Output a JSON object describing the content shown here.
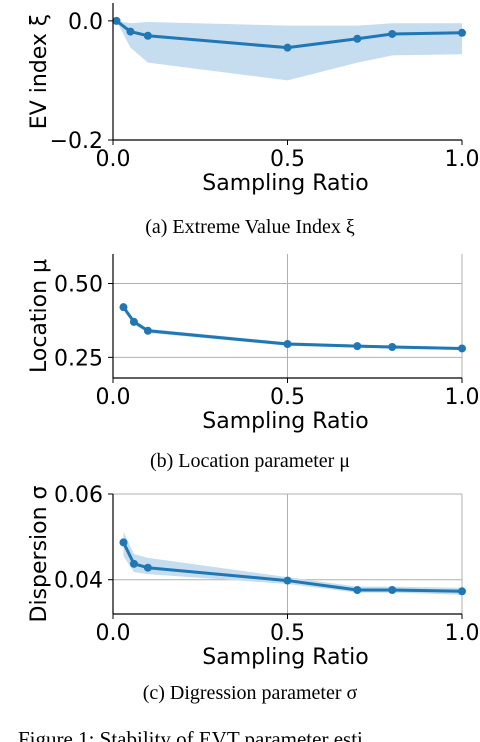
{
  "figure_caption": "Figure 1: Stability of EVT parameter esti",
  "chart_data": [
    {
      "type": "line",
      "caption": "(a) Extreme Value Index ξ",
      "xlabel": "Sampling Ratio",
      "ylabel": "EV index ξ",
      "xlim": [
        0.0,
        1.0
      ],
      "ylim": [
        -0.2,
        0.03
      ],
      "xticks": [
        "0.0",
        "0.5",
        "1.0"
      ],
      "yticks": [
        "−0.2",
        "0.0"
      ],
      "ytick_values": [
        -0.2,
        0.0
      ],
      "grid": false,
      "color": "#1f77b4",
      "band_color": "#c6dcef",
      "series": [
        {
          "x": [
            0.01,
            0.05,
            0.1,
            0.5,
            0.7,
            0.8,
            1.0
          ],
          "y": [
            0.0,
            -0.018,
            -0.025,
            -0.045,
            -0.03,
            -0.022,
            -0.02
          ],
          "lower": [
            0.0,
            -0.045,
            -0.07,
            -0.1,
            -0.07,
            -0.058,
            -0.056
          ],
          "upper": [
            0.0,
            -0.004,
            -0.002,
            -0.008,
            -0.008,
            -0.004,
            -0.004
          ]
        }
      ]
    },
    {
      "type": "line",
      "caption": "(b) Location parameter μ",
      "xlabel": "Sampling Ratio",
      "ylabel": "Location μ",
      "xlim": [
        0.0,
        1.0
      ],
      "ylim": [
        0.18,
        0.6
      ],
      "xticks": [
        "0.0",
        "0.5",
        "1.0"
      ],
      "yticks": [
        "0.25",
        "0.50"
      ],
      "ytick_values": [
        0.25,
        0.5
      ],
      "grid": true,
      "color": "#1f77b4",
      "band_color": "#c6dcef",
      "series": [
        {
          "x": [
            0.03,
            0.06,
            0.1,
            0.5,
            0.7,
            0.8,
            1.0
          ],
          "y": [
            0.42,
            0.37,
            0.34,
            0.295,
            0.288,
            0.285,
            0.28
          ],
          "lower": [
            0.412,
            0.362,
            0.333,
            0.289,
            0.283,
            0.28,
            0.275
          ],
          "upper": [
            0.428,
            0.378,
            0.347,
            0.301,
            0.293,
            0.29,
            0.285
          ]
        }
      ]
    },
    {
      "type": "line",
      "caption": "(c) Digression parameter σ",
      "xlabel": "Sampling Ratio",
      "ylabel": "Dispersion σ",
      "xlim": [
        0.0,
        1.0
      ],
      "ylim": [
        0.032,
        0.06
      ],
      "xticks": [
        "0.0",
        "0.5",
        "1.0"
      ],
      "yticks": [
        "0.04",
        "0.06"
      ],
      "ytick_values": [
        0.04,
        0.06
      ],
      "grid": true,
      "color": "#1f77b4",
      "band_color": "#c6dcef",
      "series": [
        {
          "x": [
            0.03,
            0.06,
            0.1,
            0.5,
            0.7,
            0.8,
            1.0
          ],
          "y": [
            0.0487,
            0.0437,
            0.0428,
            0.0398,
            0.0376,
            0.0376,
            0.0373
          ],
          "lower": [
            0.0455,
            0.0418,
            0.0413,
            0.039,
            0.037,
            0.037,
            0.0365
          ],
          "upper": [
            0.0512,
            0.046,
            0.0451,
            0.0406,
            0.0384,
            0.0384,
            0.0381
          ]
        }
      ]
    }
  ]
}
